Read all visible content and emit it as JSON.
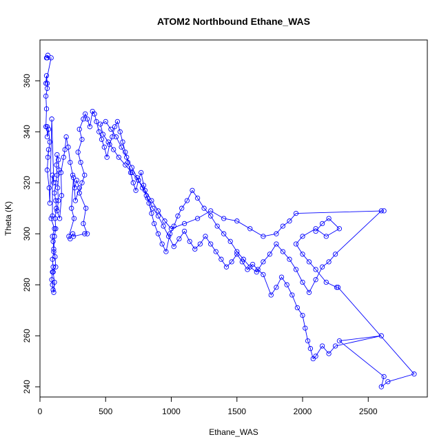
{
  "chart_data": {
    "type": "scatter",
    "title": "ATOM2 Northbound Ethane_WAS",
    "xlabel": "Ethane_WAS",
    "ylabel": "Theta (K)",
    "xlim": [
      0,
      2950
    ],
    "ylim": [
      236,
      376
    ],
    "x_ticks": [
      0,
      500,
      1000,
      1500,
      2000,
      2500
    ],
    "y_ticks": [
      240,
      260,
      280,
      300,
      320,
      340,
      360
    ],
    "x_tick_labels": [
      "0",
      "500",
      "1000",
      "1500",
      "2000",
      "2500"
    ],
    "y_tick_labels": [
      "240",
      "260",
      "280",
      "300",
      "320",
      "340",
      "360"
    ],
    "grid": false,
    "legend": "none",
    "marker": "open-circle",
    "connected": true,
    "color": "#0000ff",
    "series": [
      {
        "points": [
          [
            55,
            369
          ],
          [
            60,
            370
          ],
          [
            50,
            369
          ],
          [
            85,
            369
          ],
          [
            45,
            359
          ],
          [
            50,
            362
          ],
          [
            55,
            359
          ],
          [
            55,
            357
          ],
          [
            45,
            354
          ],
          [
            50,
            349
          ],
          [
            45,
            342
          ],
          [
            55,
            342
          ],
          [
            55,
            338
          ],
          [
            65,
            341
          ],
          [
            75,
            336
          ],
          [
            60,
            330
          ],
          [
            65,
            333
          ],
          [
            55,
            325
          ],
          [
            70,
            318
          ],
          [
            75,
            312
          ],
          [
            90,
            345
          ],
          [
            105,
            320
          ],
          [
            95,
            323
          ],
          [
            95,
            307
          ],
          [
            85,
            306
          ],
          [
            110,
            302
          ],
          [
            95,
            299
          ],
          [
            100,
            297
          ],
          [
            105,
            293
          ],
          [
            95,
            290
          ],
          [
            100,
            287
          ],
          [
            95,
            285
          ],
          [
            90,
            282
          ],
          [
            95,
            280
          ],
          [
            100,
            278
          ],
          [
            105,
            277
          ],
          [
            110,
            281
          ],
          [
            100,
            285
          ],
          [
            120,
            287
          ],
          [
            115,
            291
          ],
          [
            105,
            294
          ],
          [
            110,
            299
          ],
          [
            120,
            302
          ],
          [
            115,
            306
          ],
          [
            125,
            310
          ],
          [
            120,
            313
          ],
          [
            110,
            316
          ],
          [
            120,
            320
          ],
          [
            130,
            323
          ],
          [
            125,
            327
          ],
          [
            130,
            331
          ],
          [
            140,
            329
          ],
          [
            145,
            325
          ],
          [
            135,
            318
          ],
          [
            140,
            313
          ],
          [
            130,
            309
          ],
          [
            150,
            306
          ],
          [
            165,
            315
          ],
          [
            160,
            324
          ],
          [
            180,
            330
          ],
          [
            190,
            333
          ],
          [
            200,
            338
          ],
          [
            215,
            334
          ],
          [
            230,
            328
          ],
          [
            250,
            323
          ],
          [
            265,
            318
          ],
          [
            280,
            321
          ],
          [
            300,
            318
          ],
          [
            270,
            313
          ],
          [
            255,
            322
          ],
          [
            240,
            310
          ],
          [
            260,
            306
          ],
          [
            220,
            299
          ],
          [
            230,
            298
          ],
          [
            250,
            300
          ],
          [
            255,
            299
          ],
          [
            340,
            300
          ],
          [
            360,
            300
          ],
          [
            330,
            304
          ],
          [
            350,
            310
          ],
          [
            300,
            316
          ],
          [
            320,
            320
          ],
          [
            340,
            323
          ],
          [
            310,
            328
          ],
          [
            290,
            332
          ],
          [
            320,
            337
          ],
          [
            300,
            341
          ],
          [
            330,
            345
          ],
          [
            345,
            347
          ],
          [
            360,
            345
          ],
          [
            380,
            342
          ],
          [
            400,
            348
          ],
          [
            415,
            347
          ],
          [
            430,
            344
          ],
          [
            450,
            340
          ],
          [
            470,
            337
          ],
          [
            490,
            334
          ],
          [
            510,
            330
          ],
          [
            530,
            335
          ],
          [
            550,
            338
          ],
          [
            570,
            342
          ],
          [
            590,
            344
          ],
          [
            610,
            340
          ],
          [
            630,
            336
          ],
          [
            650,
            332
          ],
          [
            670,
            328
          ],
          [
            690,
            324
          ],
          [
            710,
            320
          ],
          [
            730,
            317
          ],
          [
            750,
            321
          ],
          [
            770,
            324
          ],
          [
            790,
            319
          ],
          [
            810,
            315
          ],
          [
            830,
            312
          ],
          [
            850,
            308
          ],
          [
            870,
            304
          ],
          [
            900,
            300
          ],
          [
            930,
            296
          ],
          [
            960,
            293
          ],
          [
            990,
            300
          ],
          [
            1020,
            303
          ],
          [
            1050,
            307
          ],
          [
            1080,
            310
          ],
          [
            1120,
            313
          ],
          [
            1160,
            317
          ],
          [
            1200,
            314
          ],
          [
            1250,
            310
          ],
          [
            1300,
            307
          ],
          [
            1350,
            303
          ],
          [
            1400,
            300
          ],
          [
            1450,
            297
          ],
          [
            1500,
            293
          ],
          [
            1550,
            290
          ],
          [
            1600,
            287
          ],
          [
            1650,
            285
          ],
          [
            1700,
            289
          ],
          [
            1750,
            292
          ],
          [
            1800,
            296
          ],
          [
            1850,
            293
          ],
          [
            1900,
            290
          ],
          [
            1950,
            286
          ],
          [
            2000,
            281
          ],
          [
            2050,
            277
          ],
          [
            2100,
            282
          ],
          [
            2150,
            287
          ],
          [
            2200,
            289
          ],
          [
            2250,
            292
          ],
          [
            2600,
            309
          ],
          [
            2620,
            309
          ],
          [
            1950,
            308
          ],
          [
            1900,
            305
          ],
          [
            1850,
            303
          ],
          [
            1800,
            300
          ],
          [
            1700,
            299
          ],
          [
            1600,
            302
          ],
          [
            1500,
            305
          ],
          [
            1400,
            306
          ],
          [
            1300,
            309
          ],
          [
            1200,
            306
          ],
          [
            1100,
            304
          ],
          [
            1000,
            302
          ],
          [
            950,
            305
          ],
          [
            900,
            309
          ],
          [
            850,
            313
          ],
          [
            800,
            317
          ],
          [
            750,
            321
          ],
          [
            700,
            324
          ],
          [
            650,
            327
          ],
          [
            600,
            330
          ],
          [
            560,
            333
          ],
          [
            520,
            336
          ],
          [
            480,
            339
          ],
          [
            460,
            343
          ],
          [
            500,
            344
          ],
          [
            540,
            341
          ],
          [
            580,
            338
          ],
          [
            620,
            334
          ],
          [
            660,
            330
          ],
          [
            700,
            326
          ],
          [
            740,
            322
          ],
          [
            780,
            318
          ],
          [
            820,
            314
          ],
          [
            860,
            310
          ],
          [
            900,
            307
          ],
          [
            940,
            303
          ],
          [
            980,
            299
          ],
          [
            1020,
            295
          ],
          [
            1060,
            298
          ],
          [
            1100,
            301
          ],
          [
            1140,
            297
          ],
          [
            1180,
            294
          ],
          [
            1220,
            296
          ],
          [
            1260,
            299
          ],
          [
            1300,
            296
          ],
          [
            1340,
            293
          ],
          [
            1380,
            290
          ],
          [
            1420,
            287
          ],
          [
            1460,
            289
          ],
          [
            1500,
            292
          ],
          [
            1540,
            289
          ],
          [
            1580,
            286
          ],
          [
            1620,
            288
          ],
          [
            1660,
            286
          ],
          [
            1700,
            284
          ],
          [
            1760,
            276
          ],
          [
            1800,
            279
          ],
          [
            1840,
            283
          ],
          [
            1880,
            280
          ],
          [
            1920,
            276
          ],
          [
            1960,
            271
          ],
          [
            2000,
            268
          ],
          [
            2020,
            263
          ],
          [
            2040,
            258
          ],
          [
            2060,
            255
          ],
          [
            2080,
            251
          ],
          [
            2100,
            252
          ],
          [
            2150,
            256
          ],
          [
            2200,
            253
          ],
          [
            2250,
            256
          ],
          [
            2600,
            260
          ],
          [
            2280,
            258
          ],
          [
            2620,
            244
          ],
          [
            2600,
            240
          ],
          [
            2650,
            242
          ],
          [
            2850,
            245
          ],
          [
            2270,
            279
          ],
          [
            2260,
            279
          ],
          [
            2180,
            281
          ],
          [
            2100,
            286
          ],
          [
            2050,
            289
          ],
          [
            2000,
            292
          ],
          [
            1950,
            296
          ],
          [
            2000,
            299
          ],
          [
            2100,
            302
          ],
          [
            2180,
            299
          ],
          [
            2280,
            302
          ],
          [
            2200,
            306
          ],
          [
            2150,
            304
          ],
          [
            2100,
            301
          ]
        ]
      }
    ]
  }
}
